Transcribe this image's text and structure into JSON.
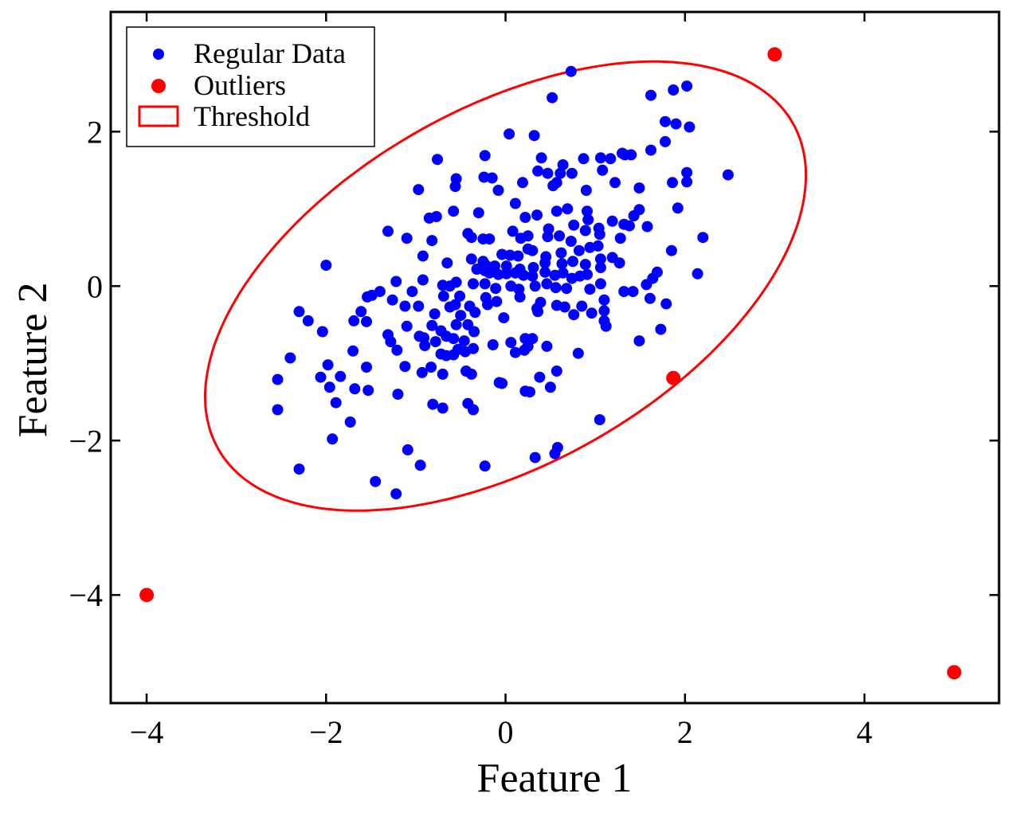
{
  "chart_data": {
    "type": "scatter",
    "title": "",
    "xlabel": "Feature 1",
    "ylabel": "Feature 2",
    "xlim": [
      -4.4,
      5.5
    ],
    "ylim": [
      -5.4,
      3.55
    ],
    "xticks": [
      -4,
      -2,
      0,
      2,
      4
    ],
    "yticks": [
      -4,
      -2,
      0,
      2
    ],
    "xtick_labels": [
      "−4",
      "−2",
      "0",
      "2",
      "4"
    ],
    "ytick_labels": [
      "−4",
      "−2",
      "0",
      "2"
    ],
    "grid": false,
    "legend_position": "top-left",
    "legend": [
      {
        "label": "Regular Data",
        "marker": "dot-small",
        "color": "#0000ff"
      },
      {
        "label": "Outliers",
        "marker": "dot-large",
        "color": "#ff0000"
      },
      {
        "label": "Threshold",
        "marker": "rect-outline",
        "color": "#ff0000"
      }
    ],
    "series": [
      {
        "name": "Regular Data",
        "color": "#0000ff",
        "points": [
          [
            0.73,
            2.78
          ],
          [
            0.52,
            2.44
          ],
          [
            1.62,
            2.47
          ],
          [
            2.02,
            2.59
          ],
          [
            1.87,
            2.54
          ],
          [
            1.78,
            2.13
          ],
          [
            1.9,
            2.1
          ],
          [
            2.05,
            2.06
          ],
          [
            1.78,
            1.87
          ],
          [
            1.62,
            1.76
          ],
          [
            0.04,
            1.97
          ],
          [
            0.32,
            1.95
          ],
          [
            -0.23,
            1.69
          ],
          [
            -0.76,
            1.64
          ],
          [
            0.4,
            1.66
          ],
          [
            0.64,
            1.57
          ],
          [
            0.87,
            1.65
          ],
          [
            1.06,
            1.66
          ],
          [
            1.17,
            1.65
          ],
          [
            1.3,
            1.72
          ],
          [
            1.4,
            1.7
          ],
          [
            1.33,
            1.7
          ],
          [
            1.08,
            1.5
          ],
          [
            0.74,
            1.46
          ],
          [
            0.61,
            1.46
          ],
          [
            0.47,
            1.46
          ],
          [
            0.36,
            1.49
          ],
          [
            0.57,
            1.34
          ],
          [
            -0.24,
            1.41
          ],
          [
            -0.15,
            1.4
          ],
          [
            -0.55,
            1.39
          ],
          [
            -0.56,
            1.29
          ],
          [
            -0.97,
            1.25
          ],
          [
            -0.08,
            1.24
          ],
          [
            0.19,
            1.34
          ],
          [
            0.53,
            1.3
          ],
          [
            0.9,
            1.24
          ],
          [
            1.22,
            1.34
          ],
          [
            1.49,
            1.27
          ],
          [
            1.86,
            1.34
          ],
          [
            2.02,
            1.47
          ],
          [
            2.02,
            1.35
          ],
          [
            2.48,
            1.44
          ],
          [
            1.92,
            1.01
          ],
          [
            2.2,
            0.63
          ],
          [
            1.85,
            0.46
          ],
          [
            2.14,
            0.16
          ],
          [
            -0.58,
            0.97
          ],
          [
            -0.3,
            0.95
          ],
          [
            -0.85,
            0.88
          ],
          [
            -0.77,
            0.9
          ],
          [
            0.11,
            1.07
          ],
          [
            0.22,
            0.89
          ],
          [
            0.35,
            0.92
          ],
          [
            0.57,
            0.97
          ],
          [
            0.69,
            1.0
          ],
          [
            0.91,
            0.97
          ],
          [
            0.92,
            0.86
          ],
          [
            1.19,
            0.84
          ],
          [
            1.32,
            0.8
          ],
          [
            1.43,
            0.91
          ],
          [
            1.49,
            0.99
          ],
          [
            1.58,
            0.77
          ],
          [
            1.38,
            0.78
          ],
          [
            1.04,
            0.75
          ],
          [
            0.76,
            0.79
          ],
          [
            0.48,
            0.74
          ],
          [
            0.08,
            0.71
          ],
          [
            -0.42,
            0.68
          ],
          [
            -1.31,
            0.71
          ],
          [
            -1.1,
            0.62
          ],
          [
            -0.82,
            0.59
          ],
          [
            -0.38,
            0.63
          ],
          [
            -0.25,
            0.61
          ],
          [
            -0.18,
            0.61
          ],
          [
            0.17,
            0.62
          ],
          [
            0.25,
            0.65
          ],
          [
            0.47,
            0.64
          ],
          [
            0.6,
            0.65
          ],
          [
            0.73,
            0.58
          ],
          [
            0.89,
            0.72
          ],
          [
            1.05,
            0.67
          ],
          [
            1.28,
            0.62
          ],
          [
            1.03,
            0.52
          ],
          [
            0.94,
            0.5
          ],
          [
            0.82,
            0.46
          ],
          [
            0.62,
            0.43
          ],
          [
            0.45,
            0.38
          ],
          [
            0.3,
            0.46
          ],
          [
            0.25,
            0.48
          ],
          [
            0.14,
            0.39
          ],
          [
            0.05,
            0.4
          ],
          [
            -0.04,
            0.41
          ],
          [
            0.31,
            0.24
          ],
          [
            0.44,
            0.3
          ],
          [
            0.63,
            0.29
          ],
          [
            0.75,
            0.32
          ],
          [
            0.89,
            0.28
          ],
          [
            1.06,
            0.35
          ],
          [
            1.19,
            0.37
          ],
          [
            1.27,
            0.3
          ],
          [
            1.06,
            0.24
          ],
          [
            -0.92,
            0.39
          ],
          [
            -0.65,
            0.3
          ],
          [
            -0.38,
            0.35
          ],
          [
            -0.22,
            0.27
          ],
          [
            -0.12,
            0.26
          ],
          [
            -0.23,
            0.2
          ],
          [
            -0.32,
            0.22
          ],
          [
            -0.18,
            0.17
          ],
          [
            -0.08,
            0.15
          ],
          [
            0.01,
            0.16
          ],
          [
            0.11,
            0.17
          ],
          [
            0.2,
            0.14
          ],
          [
            0.3,
            0.13
          ],
          [
            0.44,
            0.18
          ],
          [
            0.55,
            0.14
          ],
          [
            0.64,
            0.17
          ],
          [
            0.74,
            0.1
          ],
          [
            0.83,
            0.13
          ],
          [
            1.69,
            0.18
          ],
          [
            1.64,
            0.1
          ],
          [
            1.57,
            0.02
          ],
          [
            1.42,
            -0.07
          ],
          [
            1.32,
            -0.07
          ],
          [
            1.06,
            0.03
          ],
          [
            0.94,
            -0.04
          ],
          [
            0.68,
            -0.03
          ],
          [
            0.56,
            -0.02
          ],
          [
            0.46,
            0.03
          ],
          [
            0.33,
            0.0
          ],
          [
            0.15,
            -0.04
          ],
          [
            0.06,
            0.0
          ],
          [
            -0.11,
            -0.03
          ],
          [
            -0.23,
            0.03
          ],
          [
            -0.36,
            0.03
          ],
          [
            -0.55,
            0.05
          ],
          [
            -0.62,
            0.0
          ],
          [
            -0.7,
            0.01
          ],
          [
            -0.92,
            0.08
          ],
          [
            -1.22,
            0.06
          ],
          [
            -1.4,
            -0.07
          ],
          [
            -1.49,
            -0.12
          ],
          [
            -1.54,
            -0.14
          ],
          [
            -1.26,
            -0.18
          ],
          [
            -1.04,
            -0.07
          ],
          [
            -0.69,
            -0.13
          ],
          [
            -0.51,
            -0.13
          ],
          [
            -0.22,
            -0.15
          ],
          [
            -0.1,
            -0.2
          ],
          [
            0.16,
            -0.14
          ],
          [
            0.39,
            -0.21
          ],
          [
            0.57,
            -0.25
          ],
          [
            0.66,
            -0.27
          ],
          [
            0.85,
            -0.26
          ],
          [
            1.1,
            -0.18
          ],
          [
            1.61,
            -0.16
          ],
          [
            1.79,
            -0.23
          ],
          [
            -2.2,
            -0.45
          ],
          [
            -1.61,
            -0.33
          ],
          [
            -1.69,
            -0.45
          ],
          [
            -1.55,
            -0.46
          ],
          [
            -1.12,
            -0.26
          ],
          [
            -0.97,
            -0.26
          ],
          [
            -0.62,
            -0.27
          ],
          [
            -0.56,
            -0.24
          ],
          [
            -0.4,
            -0.26
          ],
          [
            -0.2,
            -0.24
          ],
          [
            -0.34,
            -0.34
          ],
          [
            -0.79,
            -0.36
          ],
          [
            0.36,
            -0.33
          ],
          [
            0.76,
            -0.37
          ],
          [
            0.96,
            -0.35
          ],
          [
            1.1,
            -0.32
          ],
          [
            -2.3,
            -0.33
          ],
          [
            -2.04,
            -0.59
          ],
          [
            -1.31,
            -0.63
          ],
          [
            -1.1,
            -0.52
          ],
          [
            -0.96,
            -0.65
          ],
          [
            -0.82,
            -0.51
          ],
          [
            -0.72,
            -0.58
          ],
          [
            -0.55,
            -0.5
          ],
          [
            -0.42,
            -0.5
          ],
          [
            -0.35,
            -0.59
          ],
          [
            -0.91,
            -0.67
          ],
          [
            -0.66,
            -0.65
          ],
          [
            -0.46,
            -0.71
          ],
          [
            -0.58,
            -0.68
          ],
          [
            0.06,
            -0.73
          ],
          [
            0.22,
            -0.68
          ],
          [
            0.3,
            -0.68
          ],
          [
            0.25,
            -0.78
          ],
          [
            0.46,
            -0.78
          ],
          [
            1.1,
            -0.45
          ],
          [
            1.12,
            -0.52
          ],
          [
            1.73,
            -0.56
          ],
          [
            1.49,
            -0.71
          ],
          [
            -2.4,
            -0.93
          ],
          [
            -2.06,
            -1.18
          ],
          [
            -1.98,
            -1.02
          ],
          [
            -1.84,
            -1.17
          ],
          [
            -1.7,
            -0.84
          ],
          [
            -1.55,
            -1.05
          ],
          [
            -1.28,
            -0.72
          ],
          [
            -1.21,
            -0.83
          ],
          [
            -1.12,
            -1.04
          ],
          [
            -0.9,
            -0.77
          ],
          [
            -0.78,
            -0.72
          ],
          [
            -0.72,
            -0.88
          ],
          [
            -0.66,
            -0.9
          ],
          [
            -0.58,
            -0.89
          ],
          [
            -0.53,
            -0.82
          ],
          [
            -0.45,
            -0.85
          ],
          [
            -0.36,
            -0.81
          ],
          [
            -0.14,
            -0.76
          ],
          [
            0.11,
            -0.86
          ],
          [
            0.21,
            -0.83
          ],
          [
            0.81,
            -0.87
          ],
          [
            -2.54,
            -1.21
          ],
          [
            -2.54,
            -1.6
          ],
          [
            -1.96,
            -1.31
          ],
          [
            -1.68,
            -1.33
          ],
          [
            -1.53,
            -1.35
          ],
          [
            -1.2,
            -1.4
          ],
          [
            -0.93,
            -1.12
          ],
          [
            -0.83,
            -1.05
          ],
          [
            -0.7,
            -1.14
          ],
          [
            -0.44,
            -1.1
          ],
          [
            -0.38,
            -1.14
          ],
          [
            0.38,
            -1.18
          ],
          [
            0.57,
            -1.1
          ],
          [
            -1.89,
            -1.51
          ],
          [
            -1.73,
            -1.76
          ],
          [
            -0.81,
            -1.53
          ],
          [
            -0.7,
            -1.58
          ],
          [
            -0.42,
            -1.52
          ],
          [
            -0.36,
            -1.6
          ],
          [
            -0.04,
            -1.26
          ],
          [
            -0.07,
            -1.25
          ],
          [
            0.22,
            -1.36
          ],
          [
            0.27,
            -1.37
          ],
          [
            0.5,
            -1.31
          ],
          [
            1.05,
            -1.73
          ],
          [
            -1.93,
            -1.98
          ],
          [
            -1.09,
            -2.12
          ],
          [
            -0.95,
            -2.32
          ],
          [
            -0.23,
            -2.33
          ],
          [
            0.33,
            -2.22
          ],
          [
            0.55,
            -2.17
          ],
          [
            0.58,
            -2.09
          ],
          [
            -2.3,
            -2.37
          ],
          [
            -1.45,
            -2.53
          ],
          [
            -1.22,
            -2.69
          ],
          [
            -2.0,
            0.27
          ],
          [
            -0.25,
            0.32
          ],
          [
            0.01,
            0.26
          ],
          [
            0.16,
            0.22
          ],
          [
            0.91,
            0.15
          ],
          [
            0.35,
            -0.29
          ],
          [
            -0.02,
            -0.41
          ],
          [
            -0.5,
            -0.38
          ]
        ]
      },
      {
        "name": "Outliers",
        "color": "#ff0000",
        "points": [
          [
            3.0,
            3.0
          ],
          [
            1.87,
            -1.19
          ],
          [
            -4.0,
            -4.0
          ],
          [
            5.0,
            -5.0
          ]
        ]
      }
    ],
    "threshold_ellipse": {
      "name": "Threshold",
      "color": "#ff0000",
      "center": [
        0.0,
        0.0
      ],
      "semi_major": 3.85,
      "semi_minor": 2.2,
      "angle_deg": 37
    }
  }
}
